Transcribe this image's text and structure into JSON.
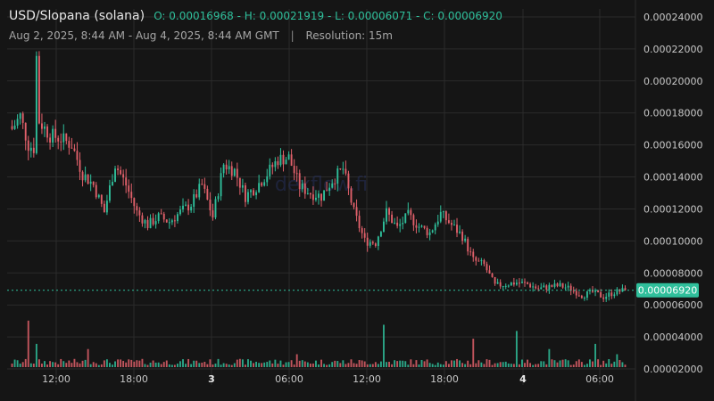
{
  "header": {
    "title": "USD/Slopana (solana)",
    "ohlc": "O: 0.00016968 - H: 0.00021919 - L: 0.00006071 - C: 0.00006920",
    "range": "Aug 2, 2025, 8:44 AM - Aug 4, 2025, 8:44 AM GMT",
    "separator": "|",
    "resolution": "Resolution: 15m"
  },
  "watermark": "dexflow.fi",
  "colors": {
    "background": "#151515",
    "up": "#2fbf9b",
    "down": "#e0606a",
    "grid": "#2b2b2b",
    "axis_text": "#c8c8c8",
    "price_line": "#2fbf9b"
  },
  "chart_data": {
    "type": "candlestick",
    "x_tick_labels": [
      "12:00",
      "18:00",
      "3",
      "06:00",
      "12:00",
      "18:00",
      "4",
      "06:00"
    ],
    "y_tick_labels": [
      "0.00002000",
      "0.00004000",
      "0.00006000",
      "0.00008000",
      "0.00010000",
      "0.00012000",
      "0.00014000",
      "0.00016000",
      "0.00018000",
      "0.00020000",
      "0.00022000",
      "0.00024000"
    ],
    "price_range": [
      1e-05,
      0.000245
    ],
    "last_price": 6.92e-05,
    "last_price_label": "0.00006920",
    "grid": true,
    "close_anchors": [
      [
        0,
        0.00017
      ],
      [
        3,
        0.000178
      ],
      [
        6,
        0.00016
      ],
      [
        8,
        0.000158
      ],
      [
        9,
        0.000215
      ],
      [
        10,
        0.000175
      ],
      [
        14,
        0.000166
      ],
      [
        18,
        0.000164
      ],
      [
        22,
        0.00016
      ],
      [
        26,
        0.000142
      ],
      [
        30,
        0.000135
      ],
      [
        34,
        0.000118
      ],
      [
        38,
        0.000148
      ],
      [
        42,
        0.000135
      ],
      [
        46,
        0.000118
      ],
      [
        50,
        0.00011
      ],
      [
        54,
        0.000115
      ],
      [
        58,
        0.000112
      ],
      [
        62,
        0.000118
      ],
      [
        66,
        0.000123
      ],
      [
        70,
        0.000135
      ],
      [
        74,
        0.000115
      ],
      [
        78,
        0.000148
      ],
      [
        82,
        0.000144
      ],
      [
        86,
        0.000128
      ],
      [
        90,
        0.000134
      ],
      [
        94,
        0.000142
      ],
      [
        98,
        0.000151
      ],
      [
        102,
        0.000152
      ],
      [
        106,
        0.000134
      ],
      [
        110,
        0.00013
      ],
      [
        114,
        0.000128
      ],
      [
        118,
        0.000138
      ],
      [
        122,
        0.000145
      ],
      [
        126,
        0.000118
      ],
      [
        130,
        0.0001
      ],
      [
        134,
        9.9e-05
      ],
      [
        138,
        0.000118
      ],
      [
        142,
        0.000108
      ],
      [
        146,
        0.000116
      ],
      [
        150,
        0.000109
      ],
      [
        154,
        0.000105
      ],
      [
        158,
        0.000117
      ],
      [
        162,
        0.00011
      ],
      [
        166,
        0.000103
      ],
      [
        170,
        8.8e-05
      ],
      [
        174,
        8.5e-05
      ],
      [
        178,
        7.2e-05
      ],
      [
        182,
        7.3e-05
      ],
      [
        186,
        7.4e-05
      ],
      [
        190,
        7.3e-05
      ],
      [
        194,
        7e-05
      ],
      [
        198,
        7.15e-05
      ],
      [
        202,
        7.2e-05
      ],
      [
        206,
        7e-05
      ],
      [
        210,
        6.6e-05
      ],
      [
        214,
        6.8e-05
      ],
      [
        218,
        6.5e-05
      ],
      [
        222,
        6.8e-05
      ],
      [
        226,
        6.92e-05
      ]
    ],
    "volume_spikes": [
      [
        6,
        0.9
      ],
      [
        9,
        0.45
      ],
      [
        28,
        0.35
      ],
      [
        105,
        0.25
      ],
      [
        137,
        0.82
      ],
      [
        170,
        0.55
      ],
      [
        186,
        0.7
      ],
      [
        198,
        0.35
      ],
      [
        215,
        0.45
      ],
      [
        223,
        0.25
      ]
    ]
  }
}
